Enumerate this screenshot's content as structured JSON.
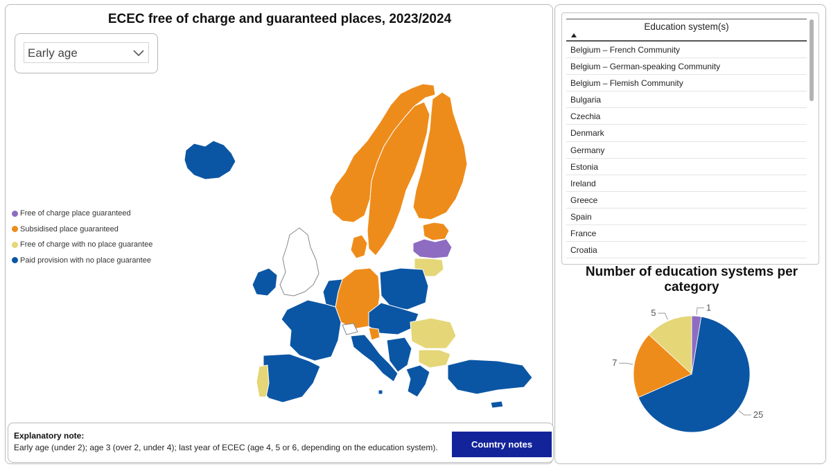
{
  "map": {
    "title": "ECEC free of charge and guaranteed places, 2023/2024",
    "filter": {
      "selected": "Early age"
    },
    "legend": [
      {
        "label": "Free of charge place guaranteed",
        "color": "#8e6cc1"
      },
      {
        "label": "Subsidised place guaranteed",
        "color": "#ee8c1b"
      },
      {
        "label": "Free of charge with no place guarantee",
        "color": "#e5d677"
      },
      {
        "label": "Paid provision with no place guarantee",
        "color": "#0b56a4"
      }
    ]
  },
  "note": {
    "title": "Explanatory note:",
    "text": "Early age (under 2); age 3 (over 2, under 4); last year of ECEC (age 4, 5 or 6, depending on the education system).",
    "button": "Country notes"
  },
  "table": {
    "header": "Education system(s)",
    "rows": [
      "Belgium – French Community",
      "Belgium – German-speaking Community",
      "Belgium – Flemish Community",
      "Bulgaria",
      "Czechia",
      "Denmark",
      "Germany",
      "Estonia",
      "Ireland",
      "Greece",
      "Spain",
      "France",
      "Croatia"
    ]
  },
  "chart_data": {
    "type": "pie",
    "title": "Number of education systems per category",
    "slices": [
      {
        "label": "Free of charge place guaranteed",
        "value": 1,
        "color": "#8e6cc1"
      },
      {
        "label": "Paid provision with no place guarantee",
        "value": 25,
        "color": "#0b56a4"
      },
      {
        "label": "Subsidised place guaranteed",
        "value": 7,
        "color": "#ee8c1b"
      },
      {
        "label": "Free of charge with no place guarantee",
        "value": 5,
        "color": "#e5d677"
      }
    ],
    "data_labels": [
      "1",
      "25",
      "7",
      "5"
    ]
  }
}
